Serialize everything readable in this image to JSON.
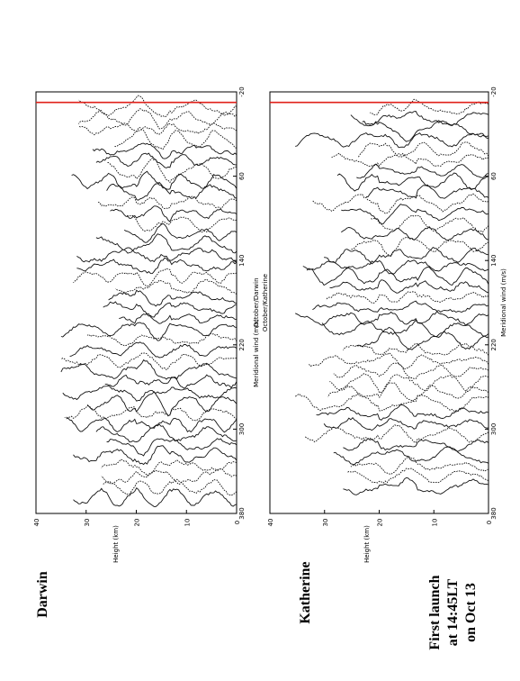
{
  "labels": {
    "darwin": "Darwin",
    "katherine": "Katherine",
    "note_line1": "First launch",
    "note_line2": "at 14:45LT",
    "note_line3": "on Oct 13"
  },
  "marker_color": "#e0201a",
  "chart_data": [
    {
      "type": "line",
      "title": "October/Darwin",
      "xlabel": "Meridional wind (m/s)",
      "ylabel": "Height (km)",
      "x_ticks": [
        "-20",
        "60",
        "140",
        "220",
        "300",
        "380"
      ],
      "y_ticks": [
        "0",
        "10",
        "20",
        "30",
        "40"
      ],
      "xlim": [
        -20,
        380
      ],
      "ylim": [
        0,
        40
      ],
      "marker_x": -10,
      "series_count": 38,
      "profile_spacing": 10,
      "grid": false
    },
    {
      "type": "line",
      "title": "October/Katherine",
      "xlabel": "Meridional wind (m/s)",
      "ylabel": "Height (km)",
      "x_ticks": [
        "-20",
        "60",
        "140",
        "220",
        "300",
        "380"
      ],
      "y_ticks": [
        "0",
        "10",
        "20",
        "30",
        "40"
      ],
      "xlim": [
        -20,
        380
      ],
      "ylim": [
        0,
        40
      ],
      "marker_x": -10,
      "series_count": 37,
      "profile_spacing": 10,
      "grid": false
    }
  ]
}
